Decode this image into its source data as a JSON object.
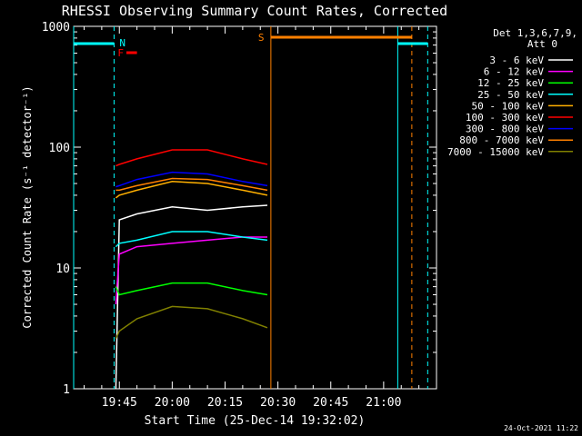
{
  "chart_data": {
    "type": "line",
    "title": "RHESSI Observing Summary Count Rates, Corrected",
    "xlabel": "Start Time (25-Dec-14 19:32:02)",
    "ylabel": "Corrected Count Rate (s⁻¹ detector⁻¹)",
    "yscale": "log",
    "ylim": [
      1,
      1000
    ],
    "xlim": [
      "19:32:02",
      "21:15:00"
    ],
    "x_ticks": [
      "19:45",
      "20:00",
      "20:15",
      "20:30",
      "20:45",
      "21:00"
    ],
    "y_ticks": [
      "1",
      "10",
      "100",
      "1000"
    ],
    "legend_title_1": "Det 1,3,6,7,9,",
    "legend_title_2": "Att 0",
    "legend_position": "top-right",
    "footer": "24-Oct-2021 11:22",
    "series": [
      {
        "name": "3 - 6 keV",
        "color": "#ffffff",
        "x": [
          "19:44",
          "19:45",
          "19:50",
          "20:00",
          "20:10",
          "20:20",
          "20:27"
        ],
        "y": [
          1,
          25,
          28,
          32,
          30,
          32,
          33
        ]
      },
      {
        "name": "6 - 12 keV",
        "color": "#ff00ff",
        "x": [
          "19:44",
          "19:45",
          "19:50",
          "20:00",
          "20:10",
          "20:20",
          "20:27"
        ],
        "y": [
          5,
          13,
          15,
          16,
          17,
          18,
          18
        ]
      },
      {
        "name": "12 - 25 keV",
        "color": "#00ff00",
        "x": [
          "19:44",
          "19:45",
          "19:50",
          "20:00",
          "20:10",
          "20:20",
          "20:27"
        ],
        "y": [
          7,
          6,
          6.5,
          7.5,
          7.5,
          6.5,
          6
        ]
      },
      {
        "name": "25 - 50 keV",
        "color": "#00ffff",
        "x": [
          "19:44",
          "19:45",
          "19:50",
          "20:00",
          "20:10",
          "20:20",
          "20:27"
        ],
        "y": [
          15,
          16,
          17,
          20,
          20,
          18,
          17
        ]
      },
      {
        "name": "50 - 100 keV",
        "color": "#ffb000",
        "x": [
          "19:44",
          "19:45",
          "19:50",
          "20:00",
          "20:10",
          "20:20",
          "20:27"
        ],
        "y": [
          38,
          40,
          44,
          52,
          50,
          44,
          40
        ]
      },
      {
        "name": "100 - 300 keV",
        "color": "#ff0000",
        "x": [
          "19:44",
          "19:45",
          "19:50",
          "20:00",
          "20:10",
          "20:20",
          "20:27"
        ],
        "y": [
          70,
          72,
          80,
          95,
          95,
          80,
          72
        ]
      },
      {
        "name": "300 - 800 keV",
        "color": "#0000ff",
        "x": [
          "19:44",
          "19:45",
          "19:50",
          "20:00",
          "20:10",
          "20:20",
          "20:27"
        ],
        "y": [
          47,
          48,
          54,
          62,
          60,
          52,
          48
        ]
      },
      {
        "name": "800 - 7000 keV",
        "color": "#ff8000",
        "x": [
          "19:44",
          "19:45",
          "19:50",
          "20:00",
          "20:10",
          "20:20",
          "20:27"
        ],
        "y": [
          44,
          44,
          48,
          55,
          54,
          48,
          44
        ]
      },
      {
        "name": "7000 - 15000 keV",
        "color": "#808000",
        "x": [
          "19:44",
          "19:45",
          "19:50",
          "20:00",
          "20:10",
          "20:20",
          "20:27"
        ],
        "y": [
          2.6,
          3,
          3.8,
          4.8,
          4.6,
          3.8,
          3.2
        ]
      }
    ],
    "annotations": {
      "night_label": "N",
      "flare_label": "F",
      "saa_label": "S"
    }
  }
}
